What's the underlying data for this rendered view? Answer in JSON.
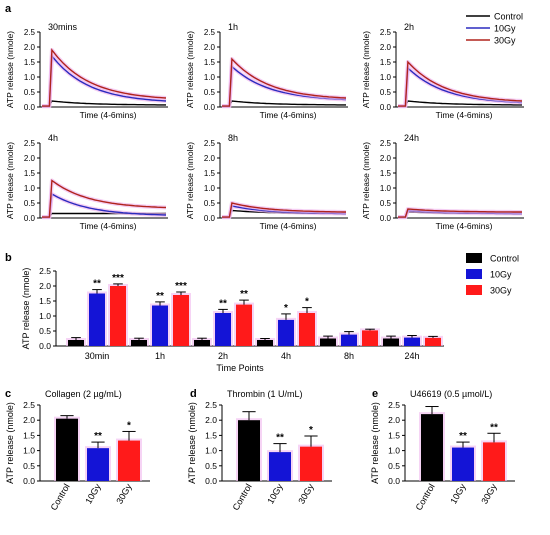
{
  "colors": {
    "control": "#000000",
    "10gy_line": "#2b2bbf",
    "30gy_line": "#b0231d",
    "10gy_bar": "#1414d6",
    "30gy_bar": "#ff1a1a",
    "glow": "#f0b8ee"
  },
  "panel_labels": {
    "a": "a",
    "b": "b",
    "c": "c",
    "d": "d",
    "e": "e"
  },
  "legend_a": [
    {
      "name": "Control",
      "color": "#000000"
    },
    {
      "name": "10Gy",
      "color": "#2b2bbf"
    },
    {
      "name": "30Gy",
      "color": "#b0231d"
    }
  ],
  "legend_b": [
    {
      "name": "Control",
      "color": "#000000"
    },
    {
      "name": "10Gy",
      "color": "#1414d6"
    },
    {
      "name": "30Gy",
      "color": "#ff1a1a"
    }
  ],
  "chart_data": [
    {
      "type": "line",
      "panel": "a",
      "ylabel": "ATP release (nmole)",
      "xlabel": "Time (4-6mins)",
      "ylim": [
        0,
        2.5
      ],
      "yticks": [
        "0.0",
        "0.5",
        "1.0",
        "1.5",
        "2.0",
        "2.5"
      ],
      "subplots": [
        {
          "title": "30mins",
          "peaks": {
            "Control": 0.2,
            "10Gy": 1.7,
            "30Gy": 1.9
          },
          "ends": {
            "Control": 0.07,
            "10Gy": 0.2,
            "30Gy": 0.3
          }
        },
        {
          "title": "1h",
          "peaks": {
            "Control": 0.2,
            "10Gy": 1.35,
            "30Gy": 1.6
          },
          "ends": {
            "Control": 0.07,
            "10Gy": 0.25,
            "30Gy": 0.3
          }
        },
        {
          "title": "2h",
          "peaks": {
            "Control": 0.2,
            "10Gy": 1.3,
            "30Gy": 1.5
          },
          "ends": {
            "Control": 0.07,
            "10Gy": 0.15,
            "30Gy": 0.2
          }
        },
        {
          "title": "4h",
          "peaks": {
            "Control": 0.15,
            "10Gy": 0.8,
            "30Gy": 1.25
          },
          "ends": {
            "Control": 0.15,
            "10Gy": 0.1,
            "30Gy": 0.35
          }
        },
        {
          "title": "8h",
          "peaks": {
            "Control": 0.25,
            "10Gy": 0.4,
            "30Gy": 0.5
          },
          "ends": {
            "Control": 0.15,
            "10Gy": 0.15,
            "30Gy": 0.2
          }
        },
        {
          "title": "24h",
          "peaks": {
            "Control": 0.2,
            "10Gy": 0.25,
            "30Gy": 0.3
          },
          "ends": {
            "Control": 0.15,
            "10Gy": 0.15,
            "30Gy": 0.2
          }
        }
      ]
    },
    {
      "type": "bar",
      "panel": "b",
      "ylabel": "ATP release (nmole)",
      "xlabel": "Time Points",
      "ylim": [
        0,
        2.5
      ],
      "yticks": [
        "0.0",
        "0.5",
        "1.0",
        "1.5",
        "2.0",
        "2.5"
      ],
      "categories": [
        "30min",
        "1h",
        "2h",
        "4h",
        "8h",
        "24h"
      ],
      "series": [
        {
          "name": "Control",
          "values": [
            0.2,
            0.2,
            0.2,
            0.2,
            0.25,
            0.25
          ],
          "errors": [
            0.08,
            0.06,
            0.06,
            0.05,
            0.08,
            0.08
          ]
        },
        {
          "name": "10Gy",
          "values": [
            1.75,
            1.35,
            1.1,
            0.87,
            0.38,
            0.28
          ],
          "errors": [
            0.13,
            0.12,
            0.12,
            0.2,
            0.1,
            0.07
          ]
        },
        {
          "name": "30Gy",
          "values": [
            2.0,
            1.7,
            1.38,
            1.1,
            0.52,
            0.27
          ],
          "errors": [
            0.07,
            0.1,
            0.15,
            0.18,
            0.04,
            0.05
          ]
        }
      ],
      "significance": [
        {
          "category": "30min",
          "series": "10Gy",
          "text": "**"
        },
        {
          "category": "30min",
          "series": "30Gy",
          "text": "***"
        },
        {
          "category": "1h",
          "series": "10Gy",
          "text": "**"
        },
        {
          "category": "1h",
          "series": "30Gy",
          "text": "***"
        },
        {
          "category": "2h",
          "series": "10Gy",
          "text": "**"
        },
        {
          "category": "2h",
          "series": "30Gy",
          "text": "**"
        },
        {
          "category": "4h",
          "series": "10Gy",
          "text": "*"
        },
        {
          "category": "4h",
          "series": "30Gy",
          "text": "*"
        }
      ]
    },
    {
      "type": "bar",
      "panel": "c",
      "title": "Collagen (2 µg/mL)",
      "ylabel": "ATP release (nmole)",
      "ylim": [
        0,
        2.5
      ],
      "yticks": [
        "0.0",
        "0.5",
        "1.0",
        "1.5",
        "2.0",
        "2.5"
      ],
      "categories": [
        "Control",
        "10Gy",
        "30Gy"
      ],
      "values": [
        2.05,
        1.08,
        1.33
      ],
      "errors": [
        0.1,
        0.2,
        0.3
      ],
      "significance": [
        "",
        "**",
        "*"
      ]
    },
    {
      "type": "bar",
      "panel": "d",
      "title": "Thrombin (1 U/mL)",
      "ylabel": "ATP release (nmole)",
      "ylim": [
        0,
        2.5
      ],
      "yticks": [
        "0.0",
        "0.5",
        "1.0",
        "1.5",
        "2.0",
        "2.5"
      ],
      "categories": [
        "Control",
        "10Gy",
        "30Gy"
      ],
      "values": [
        2.0,
        0.95,
        1.13
      ],
      "errors": [
        0.28,
        0.28,
        0.35
      ],
      "significance": [
        "",
        "**",
        "*"
      ]
    },
    {
      "type": "bar",
      "panel": "e",
      "title": "U46619 (0.5 µmol/L)",
      "ylabel": "ATP release (nmole)",
      "ylim": [
        0,
        2.5
      ],
      "yticks": [
        "0.0",
        "0.5",
        "1.0",
        "1.5",
        "2.0",
        "2.5"
      ],
      "categories": [
        "Control",
        "10Gy",
        "30Gy"
      ],
      "values": [
        2.2,
        1.1,
        1.27
      ],
      "errors": [
        0.25,
        0.18,
        0.3
      ],
      "significance": [
        "",
        "**",
        "**"
      ]
    }
  ]
}
